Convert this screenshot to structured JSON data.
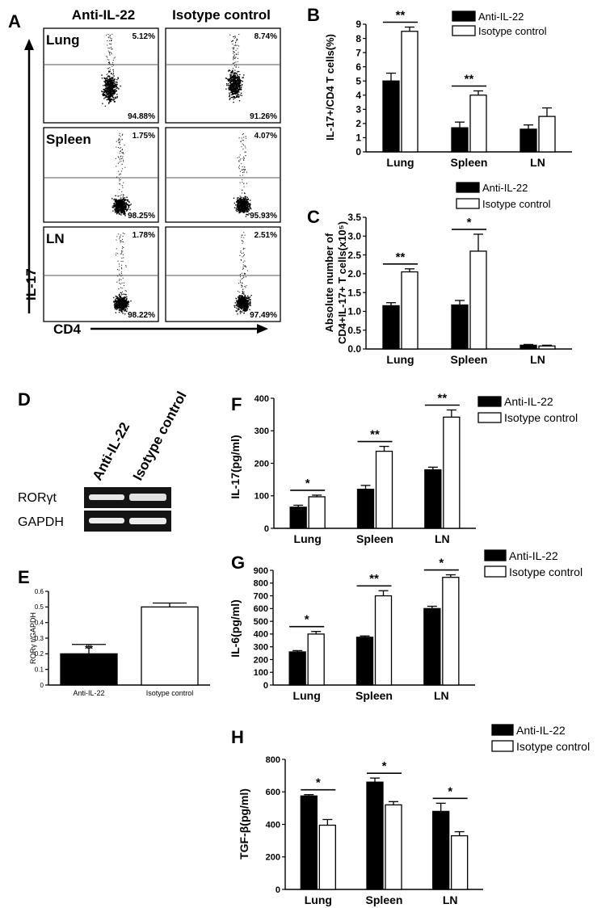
{
  "panel_letters": {
    "A": "A",
    "B": "B",
    "C": "C",
    "D": "D",
    "E": "E",
    "F": "F",
    "G": "G",
    "H": "H"
  },
  "panel_A": {
    "col_headers": [
      "Anti-IL-22",
      "Isotype control"
    ],
    "row_labels": [
      "Lung",
      "Spleen",
      "LN"
    ],
    "y_axis_label": "IL-17",
    "x_axis_label": "CD4",
    "quadrants": [
      [
        {
          "upper": "5.12%",
          "lower": "94.88%"
        },
        {
          "upper": "8.74%",
          "lower": "91.26%"
        }
      ],
      [
        {
          "upper": "1.75%",
          "lower": "98.25%"
        },
        {
          "upper": "4.07%",
          "lower": "95.93%"
        }
      ],
      [
        {
          "upper": "1.78%",
          "lower": "98.22%"
        },
        {
          "upper": "2.51%",
          "lower": "97.49%"
        }
      ]
    ]
  },
  "panel_D": {
    "lane_labels": [
      "Anti-IL-22",
      "Isotype control"
    ],
    "row_labels": [
      "RORγt",
      "GAPDH"
    ]
  },
  "legend": {
    "anti": "Anti-IL-22",
    "iso": "Isotype control"
  },
  "colors": {
    "anti": "#000000",
    "iso": "#ffffff",
    "axis": "#000000"
  },
  "chart_data": [
    {
      "id": "B",
      "type": "bar",
      "categories": [
        "Lung",
        "Spleen",
        "LN"
      ],
      "series": [
        {
          "name": "Anti-IL-22",
          "values": [
            5.0,
            1.7,
            1.6
          ],
          "errors": [
            0.55,
            0.4,
            0.3
          ]
        },
        {
          "name": "Isotype control",
          "values": [
            8.5,
            4.0,
            2.5
          ],
          "errors": [
            0.3,
            0.3,
            0.6
          ]
        }
      ],
      "ylabel": "IL-17+/CD4 T cells(%)",
      "ylim": [
        0,
        9
      ],
      "yticks": [
        "0",
        "1",
        "2",
        "3",
        "4",
        "5",
        "6",
        "7",
        "8",
        "9"
      ],
      "significance": [
        "**",
        "**",
        ""
      ],
      "legend_position": "top-right"
    },
    {
      "id": "C",
      "type": "bar",
      "categories": [
        "Lung",
        "Spleen",
        "LN"
      ],
      "series": [
        {
          "name": "Anti-IL-22",
          "values": [
            1.15,
            1.17,
            0.1
          ],
          "errors": [
            0.08,
            0.12,
            0.02
          ]
        },
        {
          "name": "Isotype control",
          "values": [
            2.05,
            2.6,
            0.08
          ],
          "errors": [
            0.08,
            0.45,
            0.02
          ]
        }
      ],
      "ylabel_line1": "Absolute number of",
      "ylabel_line2": "CD4+IL-17+ T cells(x10⁵)",
      "ylim": [
        0,
        3.5
      ],
      "yticks": [
        "0.0",
        "0.5",
        "1.0",
        "1.5",
        "2.0",
        "2.5",
        "3.0",
        "3.5"
      ],
      "significance": [
        "**",
        "*",
        ""
      ],
      "legend_position": "top"
    },
    {
      "id": "E",
      "type": "bar",
      "categories": [
        "Anti-IL-22",
        "Isotype control"
      ],
      "series": [
        {
          "name": "RORγt/GAPDH",
          "values": [
            0.2,
            0.5
          ],
          "errors": [
            0.06,
            0.025
          ]
        }
      ],
      "ylabel": "RORγ t/GAPDH",
      "ylim": [
        0,
        0.6
      ],
      "yticks": [
        "0",
        "0.1",
        "0.2",
        "0.3",
        "0.4",
        "0.5",
        "0.6"
      ],
      "significance": [
        "**",
        ""
      ]
    },
    {
      "id": "F",
      "type": "bar",
      "categories": [
        "Lung",
        "Spleen",
        "LN"
      ],
      "series": [
        {
          "name": "Anti-IL-22",
          "values": [
            65,
            120,
            180
          ],
          "errors": [
            6,
            12,
            8
          ]
        },
        {
          "name": "Isotype control",
          "values": [
            97,
            237,
            342
          ],
          "errors": [
            5,
            15,
            22
          ]
        }
      ],
      "ylabel": "IL-17(pg/ml)",
      "ylim": [
        0,
        400
      ],
      "yticks": [
        "0",
        "100",
        "200",
        "300",
        "400"
      ],
      "significance": [
        "*",
        "**",
        "**"
      ],
      "legend_position": "top-right"
    },
    {
      "id": "G",
      "type": "bar",
      "categories": [
        "Lung",
        "Spleen",
        "LN"
      ],
      "series": [
        {
          "name": "Anti-IL-22",
          "values": [
            260,
            375,
            600
          ],
          "errors": [
            10,
            10,
            18
          ]
        },
        {
          "name": "Isotype control",
          "values": [
            400,
            700,
            845
          ],
          "errors": [
            20,
            40,
            20
          ]
        }
      ],
      "ylabel": "IL-6(pg/ml)",
      "ylim": [
        0,
        900
      ],
      "yticks": [
        "0",
        "100",
        "200",
        "300",
        "400",
        "500",
        "600",
        "700",
        "800",
        "900"
      ],
      "significance": [
        "*",
        "**",
        "*"
      ],
      "legend_position": "top-right"
    },
    {
      "id": "H",
      "type": "bar",
      "categories": [
        "Lung",
        "Spleen",
        "LN"
      ],
      "series": [
        {
          "name": "Anti-IL-22",
          "values": [
            575,
            660,
            480
          ],
          "errors": [
            8,
            25,
            50
          ]
        },
        {
          "name": "Isotype control",
          "values": [
            395,
            520,
            330
          ],
          "errors": [
            35,
            20,
            25
          ]
        }
      ],
      "ylabel": "TGF-β(pg/ml)",
      "ylim": [
        0,
        800
      ],
      "yticks": [
        "0",
        "200",
        "400",
        "600",
        "800"
      ],
      "significance": [
        "*",
        "*",
        "*"
      ],
      "legend_position": "top-right"
    }
  ]
}
